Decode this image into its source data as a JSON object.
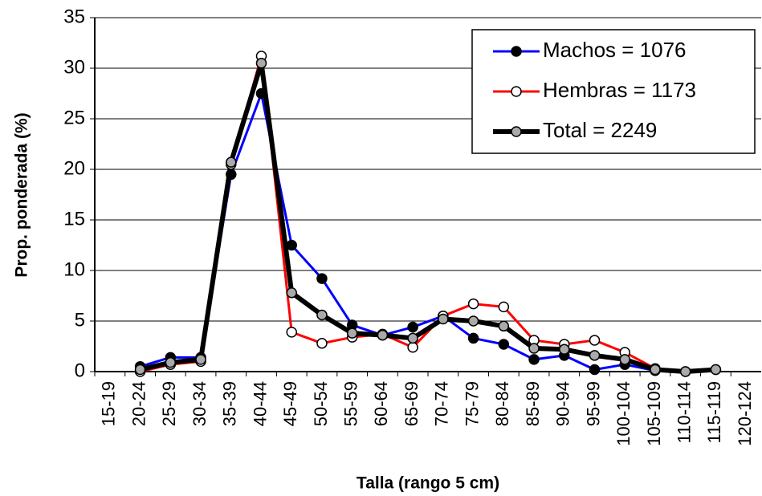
{
  "chart_data": {
    "type": "line",
    "x_label": "Talla (rango 5 cm)",
    "y_label": "Prop. ponderada (%)",
    "categories": [
      "15-19",
      "20-24",
      "25-29",
      "30-34",
      "35-39",
      "40-44",
      "45-49",
      "50-54",
      "55-59",
      "60-64",
      "65-69",
      "70-74",
      "75-79",
      "80-84",
      "85-89",
      "90-94",
      "95-99",
      "100-104",
      "105-109",
      "110-114",
      "115-119",
      "120-124"
    ],
    "series": [
      {
        "name": "Machos = 1076",
        "color": "#0000ff",
        "marker": "#000000",
        "width": 3,
        "values": [
          null,
          0.5,
          1.4,
          1.4,
          19.5,
          27.5,
          12.5,
          9.2,
          4.6,
          3.6,
          4.4,
          5.5,
          3.3,
          2.7,
          1.2,
          1.6,
          0.2,
          0.7,
          0.1,
          null,
          null,
          null
        ]
      },
      {
        "name": "Hembras = 1173",
        "color": "#ff0000",
        "marker": "#ffffff",
        "width": 3,
        "values": [
          null,
          0,
          0.7,
          1.0,
          20.5,
          31.2,
          3.9,
          2.8,
          3.4,
          3.7,
          2.4,
          5.5,
          6.7,
          6.4,
          3.1,
          2.7,
          3.1,
          1.9,
          0.3,
          0,
          0.2,
          null
        ]
      },
      {
        "name": "Total = 2249",
        "color": "#000000",
        "marker": "#aaaaaa",
        "width": 6,
        "values": [
          null,
          0.2,
          0.9,
          1.2,
          20.7,
          30.5,
          7.8,
          5.6,
          3.8,
          3.6,
          3.3,
          5.2,
          5.0,
          4.5,
          2.3,
          2.2,
          1.6,
          1.2,
          0.2,
          0,
          0.2,
          null
        ]
      }
    ],
    "ylim": [
      0,
      35
    ],
    "yticks": [
      0,
      5,
      10,
      15,
      20,
      25,
      30,
      35
    ],
    "grid": true,
    "legend": "top-right"
  }
}
